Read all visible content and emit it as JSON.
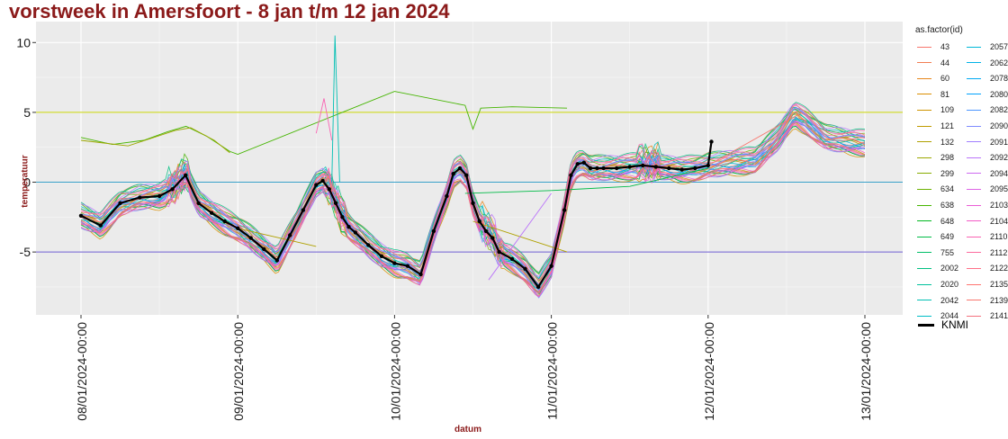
{
  "chart_data": {
    "type": "line",
    "title": "vorstweek in Amersfoort - 8 jan t/m 12 jan 2024",
    "xlabel": "datum",
    "ylabel": "temperatuur",
    "xlim": [
      "2024-01-07T20:00",
      "2024-01-13T06:00"
    ],
    "ylim": [
      -9.5,
      11.5
    ],
    "y_ticks": [
      -5,
      0,
      5,
      10
    ],
    "y_tick_labels": [
      "-5",
      "0",
      "5",
      "10"
    ],
    "x_ticks": [
      "2024-01-08T00:00",
      "2024-01-09T00:00",
      "2024-01-10T00:00",
      "2024-01-11T00:00",
      "2024-01-12T00:00",
      "2024-01-13T00:00"
    ],
    "x_tick_labels": [
      "08/01/2024-00:00",
      "09/01/2024-00:00",
      "10/01/2024-00:00",
      "11/01/2024-00:00",
      "12/01/2024-00:00",
      "13/01/2024-00:00"
    ],
    "hlines": [
      {
        "y": 5,
        "color": "#c8d400"
      },
      {
        "y": 0,
        "color": "#39a0c8"
      },
      {
        "y": -5,
        "color": "#6a5acd"
      }
    ],
    "grid": true,
    "legend_position": "right",
    "legend_title": "as.factor(id)",
    "legend_ids": [
      "43",
      "44",
      "60",
      "81",
      "109",
      "121",
      "132",
      "298",
      "299",
      "634",
      "638",
      "648",
      "649",
      "755",
      "2002",
      "2020",
      "2042",
      "2044",
      "2057",
      "2062",
      "2078",
      "2080",
      "2082",
      "2090",
      "2091",
      "2092",
      "2094",
      "2095",
      "2103",
      "2104",
      "2110",
      "2112",
      "2122",
      "2135",
      "2139",
      "2141"
    ],
    "legend_colors": [
      "#F8766D",
      "#F27D52",
      "#E7861B",
      "#DB8E00",
      "#CF9400",
      "#C09B00",
      "#AFA100",
      "#9CA700",
      "#87AC00",
      "#6BB100",
      "#45B500",
      "#00B81F",
      "#00BB47",
      "#00BE67",
      "#00C081",
      "#00C19C",
      "#00BFB3",
      "#00BDC7",
      "#00B8D8",
      "#00B2E7",
      "#00AAF3",
      "#00A1FC",
      "#4B96FF",
      "#7F8BFF",
      "#A07FFF",
      "#BA73FA",
      "#CE6AF1",
      "#DE62E5",
      "#EA5DD6",
      "#F35AC5",
      "#F962B2",
      "#FD6A9D",
      "#FF6F86",
      "#FF7470",
      "#F8766D",
      "#F4717E"
    ],
    "series": [
      {
        "name": "KNMI",
        "color": "#000000",
        "x": [
          0.0,
          0.125,
          0.25,
          0.375,
          0.5,
          0.583,
          0.667,
          0.75,
          0.833,
          0.917,
          1.0,
          1.083,
          1.167,
          1.25,
          1.333,
          1.417,
          1.5,
          1.542,
          1.583,
          1.625,
          1.667,
          1.708,
          1.75,
          1.833,
          1.917,
          2.0,
          2.083,
          2.167,
          2.25,
          2.333,
          2.375,
          2.417,
          2.458,
          2.5,
          2.542,
          2.583,
          2.625,
          2.667,
          2.75,
          2.833,
          2.917,
          3.0,
          3.083,
          3.125,
          3.167,
          3.208,
          3.25,
          3.292,
          3.333,
          3.417,
          3.5,
          3.583,
          3.667,
          3.75,
          3.833,
          3.917,
          4.0,
          4.021
        ],
        "y": [
          -2.4,
          -3.1,
          -1.5,
          -1.1,
          -1.0,
          -0.5,
          0.5,
          -1.5,
          -2.2,
          -2.8,
          -3.3,
          -4.0,
          -4.8,
          -5.6,
          -3.8,
          -2.0,
          -0.2,
          0.1,
          -0.5,
          -1.5,
          -2.5,
          -3.2,
          -3.6,
          -4.5,
          -5.3,
          -5.8,
          -6.0,
          -6.6,
          -3.5,
          -1.0,
          0.6,
          1.0,
          0.5,
          -1.5,
          -2.8,
          -3.5,
          -4.0,
          -5.0,
          -5.5,
          -6.2,
          -7.5,
          -6.0,
          -2.0,
          0.5,
          1.3,
          1.4,
          1.0,
          1.0,
          1.0,
          1.0,
          1.1,
          1.2,
          1.1,
          1.0,
          0.9,
          1.0,
          1.2,
          2.9
        ]
      }
    ]
  }
}
